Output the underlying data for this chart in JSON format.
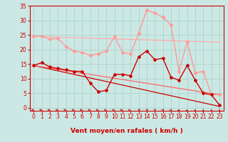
{
  "xlabel": "Vent moyen/en rafales ( km/h )",
  "background_color": "#cce8e4",
  "grid_color": "#aad4cc",
  "text_color": "#cc0000",
  "xlim": [
    -0.5,
    23.5
  ],
  "ylim": [
    -1,
    35
  ],
  "yticks": [
    0,
    5,
    10,
    15,
    20,
    25,
    30,
    35
  ],
  "xticks": [
    0,
    1,
    2,
    3,
    4,
    5,
    6,
    7,
    8,
    9,
    10,
    11,
    12,
    13,
    14,
    15,
    16,
    17,
    18,
    19,
    20,
    21,
    22,
    23
  ],
  "series": [
    {
      "x": [
        0,
        1,
        2,
        3,
        4,
        5,
        6,
        7,
        8,
        9,
        10,
        11,
        12,
        13,
        14,
        15,
        16,
        17,
        18,
        19,
        20,
        21,
        22,
        23
      ],
      "y": [
        24.5,
        24.5,
        23.5,
        23.8,
        21.0,
        19.5,
        19.0,
        18.0,
        18.5,
        19.5,
        24.5,
        19.0,
        18.5,
        25.5,
        33.5,
        32.5,
        31.0,
        28.5,
        12.5,
        22.5,
        12.0,
        12.5,
        4.5,
        4.5
      ],
      "color": "#ff9999",
      "linewidth": 1.0,
      "marker": "D",
      "markersize": 2.0,
      "linestyle": "-"
    },
    {
      "x": [
        0,
        1,
        2,
        3,
        4,
        5,
        6,
        7,
        8,
        9,
        10,
        11,
        12,
        13,
        14,
        15,
        16,
        17,
        18,
        19,
        20,
        21,
        22,
        23
      ],
      "y": [
        14.5,
        15.5,
        14.0,
        13.5,
        13.0,
        12.5,
        12.5,
        8.5,
        5.5,
        6.0,
        11.5,
        11.5,
        11.0,
        17.5,
        19.5,
        16.5,
        17.0,
        10.5,
        9.5,
        14.5,
        9.5,
        5.0,
        4.5,
        1.0
      ],
      "color": "#cc0000",
      "linewidth": 1.0,
      "marker": "D",
      "markersize": 2.0,
      "linestyle": "-"
    },
    {
      "x": [
        0,
        23
      ],
      "y": [
        24.5,
        22.5
      ],
      "color": "#ffaaaa",
      "linewidth": 0.9,
      "marker": null,
      "linestyle": "-"
    },
    {
      "x": [
        0,
        23
      ],
      "y": [
        14.5,
        0.5
      ],
      "color": "#cc0000",
      "linewidth": 0.9,
      "marker": null,
      "linestyle": "-"
    },
    {
      "x": [
        0,
        23
      ],
      "y": [
        14.5,
        4.5
      ],
      "color": "#ff6666",
      "linewidth": 0.9,
      "marker": null,
      "linestyle": "-"
    }
  ],
  "arrow_angles": [
    0,
    0,
    0,
    0,
    0,
    0,
    0,
    0,
    10,
    10,
    10,
    10,
    20,
    30,
    45,
    50,
    60,
    70,
    75,
    80,
    85,
    90,
    90,
    90
  ]
}
